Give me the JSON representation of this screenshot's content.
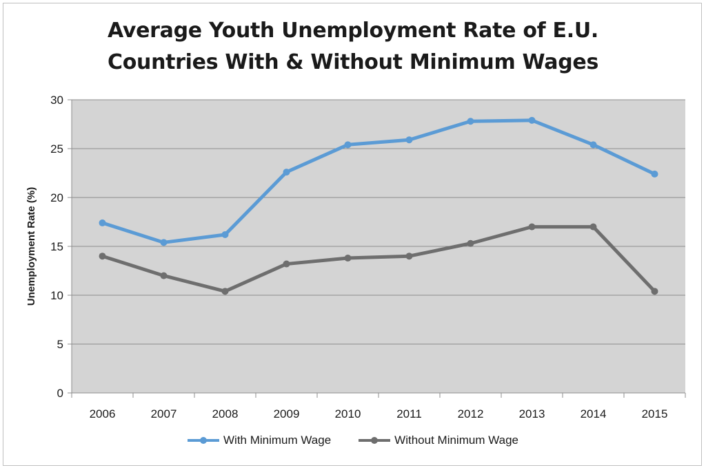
{
  "chart_data": {
    "type": "line",
    "title_lines": [
      "Average Youth Unemployment Rate of E.U.",
      "Countries With & Without Minimum Wages"
    ],
    "ylabel": "Unemployment Rate (%)",
    "xlabel": "",
    "categories": [
      "2006",
      "2007",
      "2008",
      "2009",
      "2010",
      "2011",
      "2012",
      "2013",
      "2014",
      "2015"
    ],
    "ylim": [
      0,
      30
    ],
    "yticks": [
      0,
      5,
      10,
      15,
      20,
      25,
      30
    ],
    "grid": true,
    "legend_position": "bottom",
    "plot_background": "#d4d4d4",
    "series": [
      {
        "name": "With Minimum Wage",
        "color": "#5b9bd5",
        "values": [
          17.4,
          15.4,
          16.2,
          22.6,
          25.4,
          25.9,
          27.8,
          27.9,
          25.4,
          22.4
        ]
      },
      {
        "name": "Without Minimum Wage",
        "color": "#6e6e6e",
        "values": [
          14.0,
          12.0,
          10.4,
          13.2,
          13.8,
          14.0,
          15.3,
          17.0,
          17.0,
          10.4
        ]
      }
    ]
  }
}
